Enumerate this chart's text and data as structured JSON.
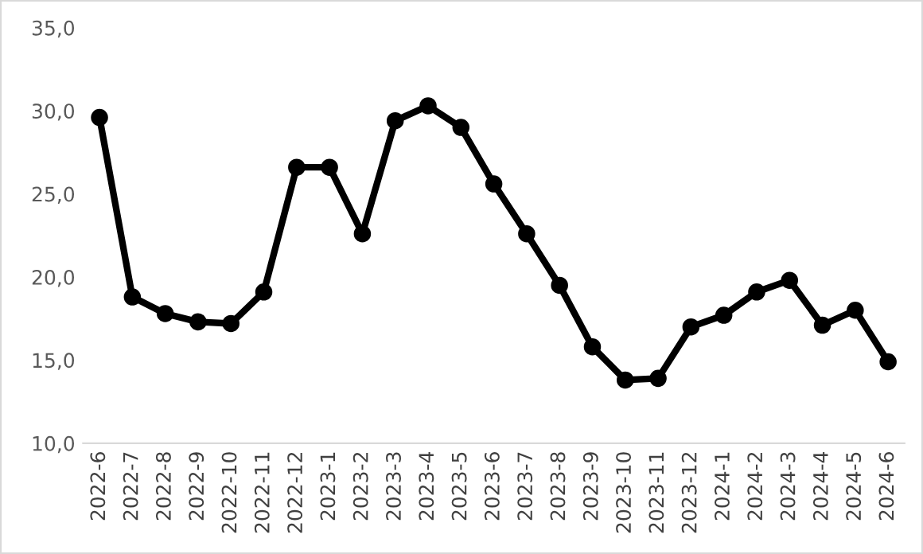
{
  "chart_data": {
    "type": "line",
    "categories": [
      "2022-6",
      "2022-7",
      "2022-8",
      "2022-9",
      "2022-10",
      "2022-11",
      "2022-12",
      "2023-1",
      "2023-2",
      "2023-3",
      "2023-4",
      "2023-5",
      "2023-6",
      "2023-7",
      "2023-8",
      "2023-9",
      "2023-10",
      "2023-11",
      "2023-12",
      "2024-1",
      "2024-2",
      "2024-3",
      "2024-4",
      "2024-5",
      "2024-6"
    ],
    "series": [
      {
        "color": "#000000",
        "values": [
          29.6,
          18.8,
          17.8,
          17.3,
          17.2,
          19.1,
          26.6,
          26.6,
          22.6,
          29.4,
          30.3,
          29.0,
          25.6,
          22.6,
          19.5,
          15.8,
          13.8,
          13.9,
          17.0,
          17.7,
          19.1,
          19.8,
          17.1,
          18.0,
          14.9
        ]
      }
    ],
    "ylim": [
      10,
      35
    ],
    "yticks": [
      {
        "value": 10,
        "label": "10,0"
      },
      {
        "value": 15,
        "label": "15,0"
      },
      {
        "value": 20,
        "label": "20,0"
      },
      {
        "value": 25,
        "label": "25,0"
      },
      {
        "value": 30,
        "label": "30,0"
      },
      {
        "value": 35,
        "label": "35,0"
      }
    ],
    "grid": false,
    "legend": false,
    "marker": "circle",
    "line_style": "solid"
  }
}
